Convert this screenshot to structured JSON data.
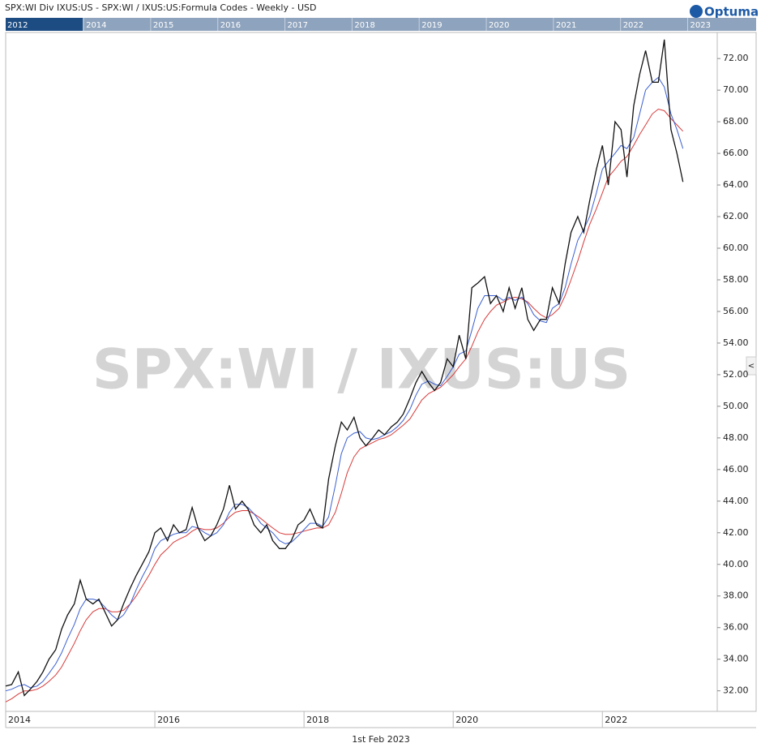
{
  "chart_data": {
    "type": "line",
    "title": "SPX:WI Div IXUS:US - SPX:WI / IXUS:US:Formula Codes - Weekly - USD",
    "brand": "Optuma",
    "watermark": "SPX:WI / IXUS:US",
    "footer_date": "1st Feb 2023",
    "navigator": {
      "start_label": "2012",
      "xlim": [
        2012.84,
        2024.02
      ],
      "xticks": [
        2014,
        2015,
        2016,
        2017,
        2018,
        2019,
        2020,
        2021,
        2022,
        2023
      ]
    },
    "xlim": [
      2014,
      2023.54
    ],
    "xticks": [
      2014,
      2016,
      2018,
      2020,
      2022
    ],
    "ylim": [
      30.7,
      73.65
    ],
    "yticks": [
      {
        "value": 32,
        "label": "32.00"
      },
      {
        "value": 34,
        "label": "34.00"
      },
      {
        "value": 36,
        "label": "36.00"
      },
      {
        "value": 38,
        "label": "38.00"
      },
      {
        "value": 40,
        "label": "40.00"
      },
      {
        "value": 42,
        "label": "42.00"
      },
      {
        "value": 44,
        "label": "44.00"
      },
      {
        "value": 46,
        "label": "46.00"
      },
      {
        "value": 48,
        "label": "48.00"
      },
      {
        "value": 50,
        "label": "50.00"
      },
      {
        "value": 52,
        "label": "52.00"
      },
      {
        "value": 54,
        "label": "54.00"
      },
      {
        "value": 56,
        "label": "56.00"
      },
      {
        "value": 58,
        "label": "58.00"
      },
      {
        "value": 60,
        "label": "60.00"
      },
      {
        "value": 62,
        "label": "62.00"
      },
      {
        "value": 64,
        "label": "64.00"
      },
      {
        "value": 66,
        "label": "66.00"
      },
      {
        "value": 68,
        "label": "68.00"
      },
      {
        "value": 70,
        "label": "70.00"
      },
      {
        "value": 72,
        "label": "72.00"
      }
    ],
    "x": [
      2014,
      2014.08,
      2014.17,
      2014.25,
      2014.33,
      2014.42,
      2014.5,
      2014.58,
      2014.67,
      2014.75,
      2014.83,
      2014.92,
      2015,
      2015.08,
      2015.17,
      2015.25,
      2015.33,
      2015.42,
      2015.5,
      2015.58,
      2015.67,
      2015.75,
      2015.83,
      2015.92,
      2016,
      2016.08,
      2016.17,
      2016.25,
      2016.33,
      2016.42,
      2016.5,
      2016.58,
      2016.67,
      2016.75,
      2016.83,
      2016.92,
      2017,
      2017.08,
      2017.17,
      2017.25,
      2017.33,
      2017.42,
      2017.5,
      2017.58,
      2017.67,
      2017.75,
      2017.83,
      2017.92,
      2018,
      2018.08,
      2018.17,
      2018.25,
      2018.33,
      2018.42,
      2018.5,
      2018.58,
      2018.67,
      2018.75,
      2018.83,
      2018.92,
      2019,
      2019.08,
      2019.17,
      2019.25,
      2019.33,
      2019.42,
      2019.5,
      2019.58,
      2019.67,
      2019.75,
      2019.83,
      2019.92,
      2020,
      2020.08,
      2020.17,
      2020.25,
      2020.33,
      2020.42,
      2020.5,
      2020.58,
      2020.67,
      2020.75,
      2020.83,
      2020.92,
      2021,
      2021.08,
      2021.17,
      2021.25,
      2021.33,
      2021.42,
      2021.5,
      2021.58,
      2021.67,
      2021.75,
      2021.83,
      2021.92,
      2022,
      2022.08,
      2022.17,
      2022.25,
      2022.33,
      2022.42,
      2022.5,
      2022.58,
      2022.67,
      2022.75,
      2022.83,
      2022.92,
      2023,
      2023.08
    ],
    "series": [
      {
        "color": "#111111",
        "values": [
          32.3,
          32.4,
          33.2,
          31.7,
          32.1,
          32.6,
          33.2,
          34.0,
          34.6,
          35.9,
          36.8,
          37.5,
          39.0,
          37.8,
          37.5,
          37.8,
          37.0,
          36.1,
          36.5,
          37.5,
          38.5,
          39.3,
          40.0,
          40.8,
          42.0,
          42.3,
          41.5,
          42.5,
          42.0,
          42.2,
          43.6,
          42.3,
          41.5,
          41.8,
          42.5,
          43.5,
          45.0,
          43.5,
          44.0,
          43.5,
          42.5,
          42.0,
          42.5,
          41.5,
          41.0,
          41.0,
          41.5,
          42.5,
          42.8,
          43.5,
          42.5,
          42.3,
          45.4,
          47.5,
          49.0,
          48.5,
          49.3,
          48.0,
          47.5,
          48.0,
          48.5,
          48.2,
          48.7,
          49.0,
          49.5,
          50.5,
          51.5,
          52.2,
          51.5,
          51.0,
          51.5,
          53.0,
          52.5,
          54.5,
          53.0,
          57.5,
          57.8,
          58.2,
          56.5,
          57.0,
          56.0,
          57.5,
          56.2,
          57.5,
          55.5,
          54.8,
          55.5,
          55.5,
          57.5,
          56.5,
          59.0,
          61.0,
          62.0,
          61.0,
          63.0,
          65.0,
          66.5,
          64.0,
          68.0,
          67.5,
          64.5,
          69.0,
          71.0,
          72.5,
          70.5,
          70.5,
          73.2,
          67.5,
          66.0,
          64.2
        ]
      },
      {
        "color": "#3a5fd0",
        "values": [
          32.0,
          32.1,
          32.3,
          32.4,
          32.2,
          32.3,
          32.6,
          33.1,
          33.7,
          34.4,
          35.3,
          36.2,
          37.2,
          37.8,
          37.8,
          37.7,
          37.3,
          36.8,
          36.5,
          36.8,
          37.5,
          38.4,
          39.2,
          40.0,
          41.0,
          41.5,
          41.7,
          41.9,
          42.0,
          42.0,
          42.4,
          42.3,
          42.0,
          41.8,
          42.0,
          42.5,
          43.3,
          43.8,
          43.8,
          43.6,
          43.2,
          42.6,
          42.3,
          42.0,
          41.5,
          41.3,
          41.4,
          41.8,
          42.2,
          42.6,
          42.6,
          42.4,
          43.0,
          45.0,
          47.0,
          48.0,
          48.3,
          48.4,
          48.0,
          47.9,
          48.0,
          48.2,
          48.4,
          48.7,
          49.1,
          49.8,
          50.7,
          51.4,
          51.6,
          51.4,
          51.3,
          51.9,
          52.5,
          53.3,
          53.5,
          54.8,
          56.2,
          57.0,
          57.0,
          57.0,
          56.7,
          56.9,
          56.7,
          56.9,
          56.5,
          55.8,
          55.4,
          55.3,
          56.2,
          56.5,
          57.5,
          59.0,
          60.5,
          61.2,
          62.0,
          63.5,
          65.0,
          65.5,
          66.0,
          66.5,
          66.3,
          67.0,
          68.5,
          70.0,
          70.5,
          70.8,
          70.2,
          68.5,
          67.5,
          66.3
        ]
      },
      {
        "color": "#d83a3a",
        "values": [
          31.3,
          31.5,
          31.8,
          32.0,
          32.0,
          32.1,
          32.3,
          32.6,
          33.0,
          33.5,
          34.2,
          35.0,
          35.8,
          36.5,
          37.0,
          37.2,
          37.2,
          37.0,
          37.0,
          37.1,
          37.5,
          38.0,
          38.6,
          39.3,
          40.0,
          40.6,
          41.0,
          41.4,
          41.6,
          41.8,
          42.1,
          42.3,
          42.2,
          42.2,
          42.3,
          42.6,
          43.0,
          43.3,
          43.4,
          43.4,
          43.2,
          42.9,
          42.6,
          42.3,
          42.0,
          41.9,
          41.9,
          42.0,
          42.1,
          42.2,
          42.3,
          42.3,
          42.5,
          43.3,
          44.5,
          45.8,
          46.8,
          47.3,
          47.5,
          47.7,
          47.9,
          48.0,
          48.2,
          48.5,
          48.8,
          49.2,
          49.8,
          50.4,
          50.8,
          51.0,
          51.2,
          51.6,
          52.0,
          52.5,
          53.0,
          53.8,
          54.7,
          55.5,
          56.0,
          56.4,
          56.6,
          56.8,
          56.9,
          56.8,
          56.6,
          56.2,
          55.8,
          55.6,
          55.8,
          56.2,
          57.0,
          58.0,
          59.2,
          60.4,
          61.5,
          62.5,
          63.5,
          64.5,
          65.0,
          65.5,
          65.8,
          66.5,
          67.2,
          67.8,
          68.5,
          68.8,
          68.7,
          68.2,
          67.8,
          67.4
        ]
      }
    ]
  }
}
